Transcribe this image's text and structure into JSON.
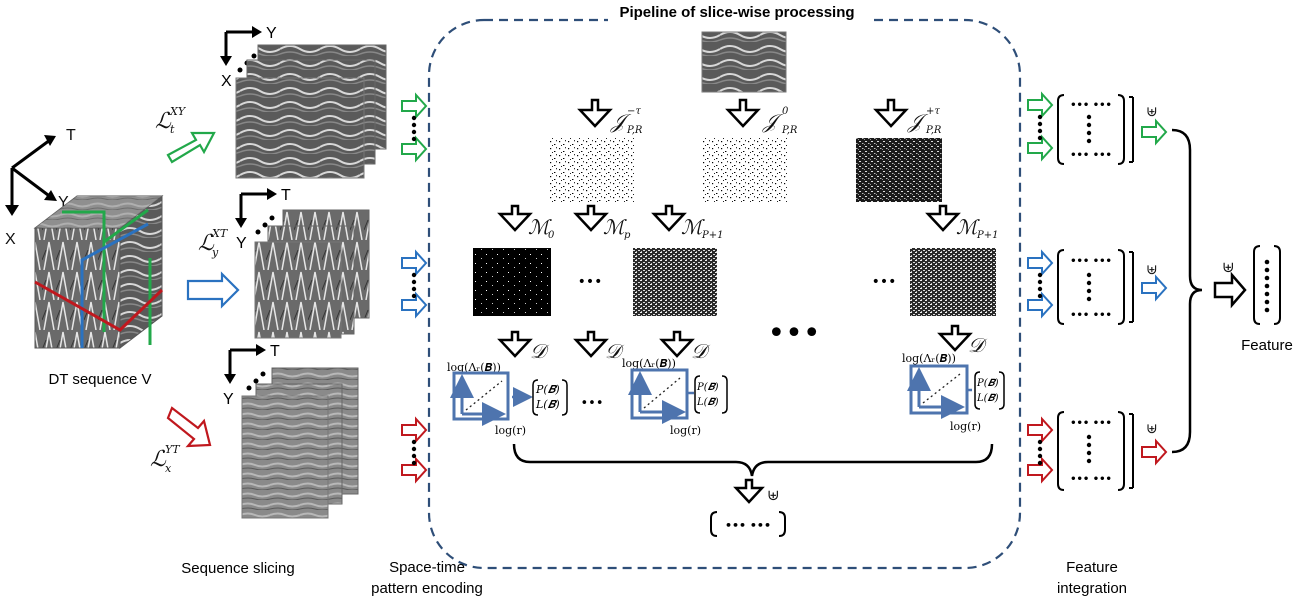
{
  "title": "Pipeline of slice-wise processing",
  "cube_label": "DT sequence V",
  "axes": {
    "t": "T",
    "y": "Y",
    "x": "X"
  },
  "slice_axes": {
    "xy": {
      "h": "Y",
      "v": "X"
    },
    "xt": {
      "h": "T",
      "v": "Y"
    },
    "yt": {
      "h": "T",
      "v": "Y"
    }
  },
  "ops": {
    "l_xy": "ℒ",
    "l_xy_sup": "XY",
    "l_xy_sub": "t",
    "l_xt": "ℒ",
    "l_xt_sup": "XT",
    "l_xt_sub": "y",
    "l_yt": "ℒ",
    "l_yt_sup": "YT",
    "l_yt_sub": "x",
    "j_minus": "𝒥",
    "j_minus_sup": "−τ",
    "j_sub": "P,R",
    "j_zero": "𝒥",
    "j_zero_sup": "0",
    "j_plus": "𝒥",
    "j_plus_sup": "+τ",
    "m0": "ℳ",
    "m0_sub": "0",
    "mp": "ℳ",
    "mp_sub": "p",
    "mp1": "ℳ",
    "mp1_sub": "P+1",
    "d": "𝒟",
    "concat": "⊎"
  },
  "plot_labels": {
    "ylabel": "log(Λᵣ(𝑩))",
    "xlabel": "log(r)",
    "pb": "P(𝑩)",
    "lb": "L(𝑩)"
  },
  "bottom_labels": {
    "slicing": "Sequence slicing",
    "encoding": [
      "Space-time",
      "pattern encoding"
    ],
    "integration": [
      "Feature",
      "integration"
    ]
  },
  "feature_label": "Feature",
  "ellipsis": "•••",
  "vec_dots": "••• •••",
  "colors": {
    "green": "#22a84a",
    "blue": "#2a72c0",
    "red": "#c0181e",
    "dash": "#2e4e78",
    "plotblue": "#4e74ae"
  }
}
